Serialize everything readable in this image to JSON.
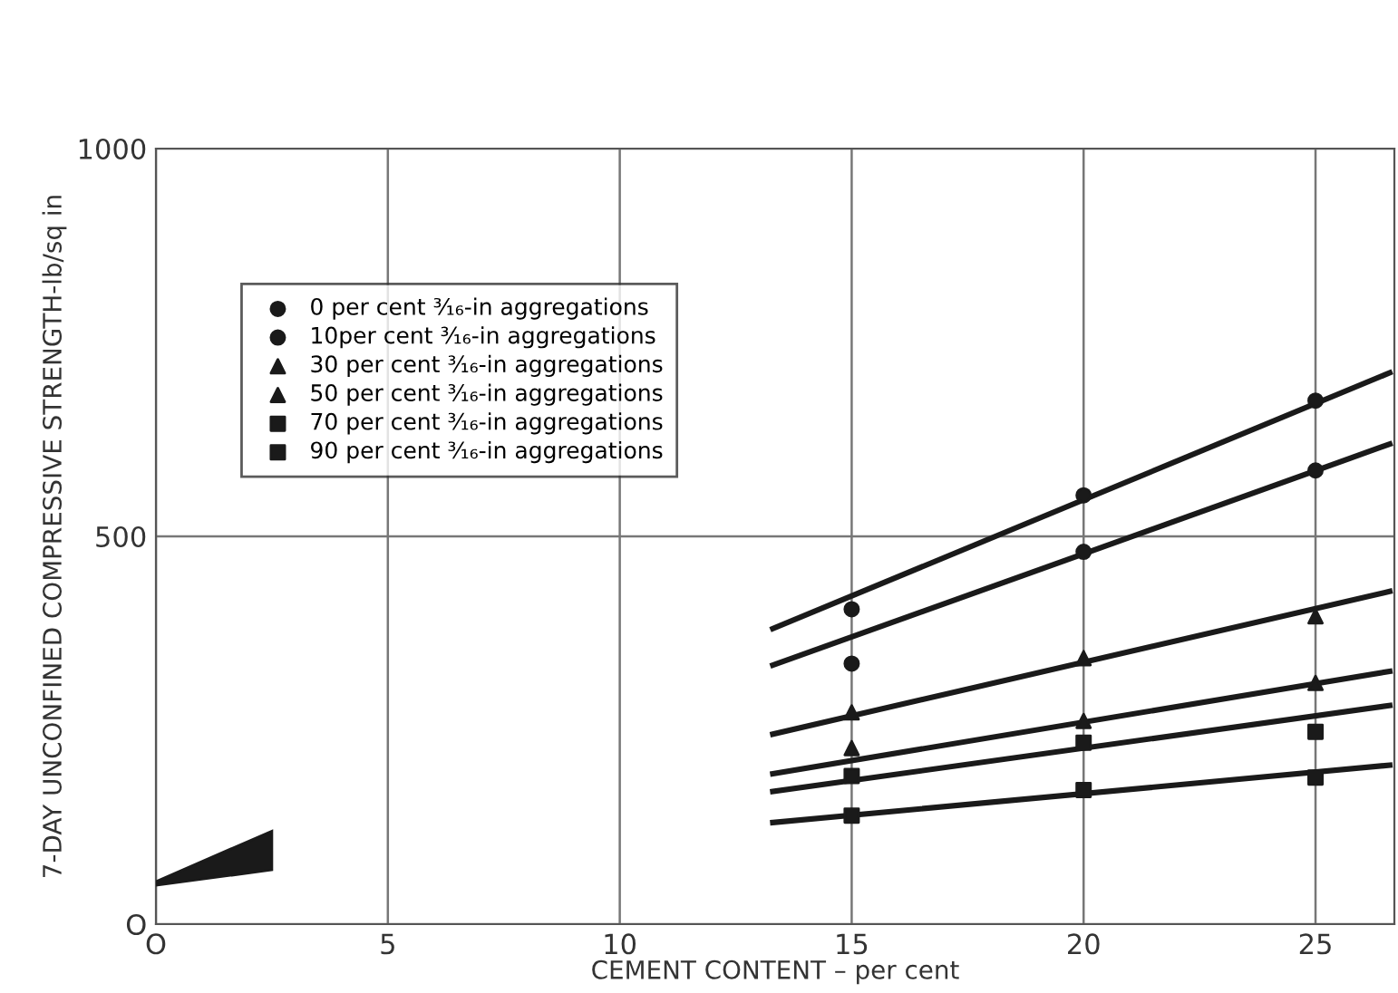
{
  "chart_data": {
    "type": "scatter",
    "xlabel": "CEMENT CONTENT – per cent",
    "ylabel": "7-DAY UNCONFINED COMPRESSIVE STRENGTH-lb/sq in",
    "xlim": [
      0,
      26.7
    ],
    "ylim": [
      0,
      1000
    ],
    "xticks": [
      {
        "value": 0,
        "label": "O"
      },
      5,
      10,
      15,
      20,
      25
    ],
    "yticks": [
      {
        "value": 0,
        "label": "O"
      },
      500,
      1000
    ],
    "grid": true,
    "legend": "top left",
    "series": [
      {
        "name": "0 per cent ³⁄₁₆-in aggregations",
        "color": "#1a1a1a",
        "marker": "circle",
        "x": [
          15,
          20,
          25
        ],
        "values": [
          406,
          553,
          675
        ]
      },
      {
        "name": "10per cent ³⁄₁₆-in aggregations",
        "color": "#1a1a1a",
        "marker": "circle",
        "x": [
          15,
          20,
          25
        ],
        "values": [
          336,
          480,
          585
        ]
      },
      {
        "name": "30 per cent ³⁄₁₆-in aggregations",
        "color": "#1a1a1a",
        "marker": "triangle",
        "x": [
          15,
          20,
          25
        ],
        "values": [
          273,
          343,
          397
        ]
      },
      {
        "name": "50 per cent ³⁄₁₆-in aggregations",
        "color": "#1a1a1a",
        "marker": "triangle",
        "x": [
          15,
          20,
          25
        ],
        "values": [
          227,
          262,
          311
        ]
      },
      {
        "name": "70 per cent ³⁄₁₆-in aggregations",
        "color": "#1a1a1a",
        "marker": "square",
        "x": [
          15,
          20,
          25
        ],
        "values": [
          191,
          234,
          248
        ]
      },
      {
        "name": "90 per cent ³⁄₁₆-in aggregations",
        "color": "#1a1a1a",
        "marker": "square",
        "x": [
          15,
          20,
          25
        ],
        "values": [
          140,
          173,
          189
        ]
      },
      {
        "type": "line",
        "color": "#1a1a1a",
        "marker": "none",
        "x": [
          13.3,
          26.6
        ],
        "values": [
          381,
          711
        ]
      },
      {
        "type": "line",
        "color": "#1a1a1a",
        "marker": "none",
        "x": [
          13.3,
          26.6
        ],
        "values": [
          334,
          619
        ]
      },
      {
        "type": "line",
        "color": "#1a1a1a",
        "marker": "none",
        "x": [
          13.3,
          26.6
        ],
        "values": [
          245,
          429
        ]
      },
      {
        "type": "line",
        "color": "#1a1a1a",
        "marker": "none",
        "x": [
          13.3,
          26.6
        ],
        "values": [
          194,
          326
        ]
      },
      {
        "type": "line",
        "color": "#1a1a1a",
        "marker": "none",
        "x": [
          13.3,
          26.6
        ],
        "values": [
          171,
          282
        ]
      },
      {
        "type": "line",
        "color": "#1a1a1a",
        "marker": "none",
        "x": [
          13.3,
          26.6
        ],
        "values": [
          131,
          205
        ]
      }
    ]
  }
}
